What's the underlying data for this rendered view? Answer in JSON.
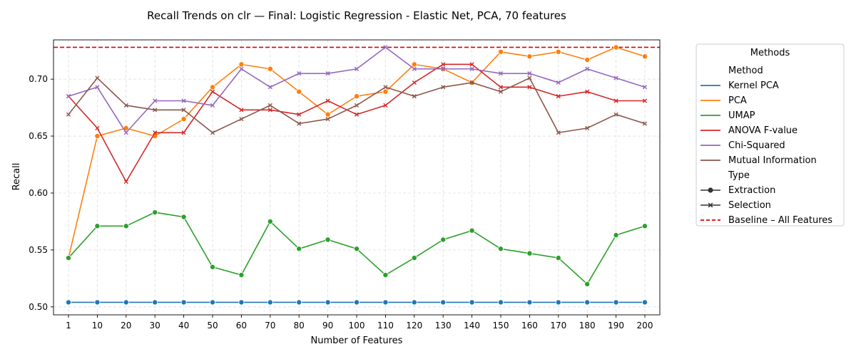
{
  "chart_data": {
    "type": "line",
    "title": "Recall Trends on clr — Final: Logistic Regression - Elastic Net, PCA, 70 features",
    "xlabel": "Number of Features",
    "ylabel": "Recall",
    "categories": [
      "1",
      "10",
      "20",
      "30",
      "40",
      "50",
      "60",
      "70",
      "80",
      "90",
      "100",
      "110",
      "120",
      "130",
      "140",
      "150",
      "160",
      "170",
      "180",
      "190",
      "200"
    ],
    "ylim": [
      0.493,
      0.7345
    ],
    "yticks": [
      "0.50",
      "0.55",
      "0.60",
      "0.65",
      "0.70"
    ],
    "ytick_values": [
      0.5,
      0.55,
      0.6,
      0.65,
      0.7
    ],
    "grid": true,
    "legend_placement": "outside-right",
    "legend": {
      "title": "Methods",
      "method_header": "Method",
      "type_header": "Type",
      "extraction_label": "Extraction",
      "selection_label": "Selection",
      "baseline_label": "Baseline – All Features"
    },
    "baseline": {
      "value": 0.728,
      "color": "#e00000"
    },
    "series": [
      {
        "name": "Kernel PCA",
        "type": "extraction",
        "color": "#1f77b4",
        "values": [
          0.504,
          0.504,
          0.504,
          0.504,
          0.504,
          0.504,
          0.504,
          0.504,
          0.504,
          0.504,
          0.504,
          0.504,
          0.504,
          0.504,
          0.504,
          0.504,
          0.504,
          0.504,
          0.504,
          0.504,
          0.504
        ]
      },
      {
        "name": "PCA",
        "type": "extraction",
        "color": "#ff7f0e",
        "values": [
          0.543,
          0.65,
          0.657,
          0.65,
          0.665,
          0.693,
          0.713,
          0.709,
          0.689,
          0.669,
          0.685,
          0.689,
          0.713,
          0.709,
          0.697,
          0.724,
          0.72,
          0.724,
          0.717,
          0.728,
          0.72
        ]
      },
      {
        "name": "UMAP",
        "type": "extraction",
        "color": "#2ca02c",
        "values": [
          0.543,
          0.571,
          0.571,
          0.583,
          0.579,
          0.535,
          0.528,
          0.575,
          0.551,
          0.559,
          0.551,
          0.528,
          0.543,
          0.559,
          0.567,
          0.551,
          0.547,
          0.543,
          0.52,
          0.563,
          0.571
        ]
      },
      {
        "name": "ANOVA F-value",
        "type": "selection",
        "color": "#d62728",
        "values": [
          0.685,
          0.657,
          0.61,
          0.653,
          0.653,
          0.689,
          0.673,
          0.673,
          0.669,
          0.681,
          0.669,
          0.677,
          0.697,
          0.713,
          0.713,
          0.693,
          0.693,
          0.685,
          0.689,
          0.681,
          0.681
        ]
      },
      {
        "name": "Chi-Squared",
        "type": "selection",
        "color": "#9467bd",
        "values": [
          0.685,
          0.693,
          0.653,
          0.681,
          0.681,
          0.677,
          0.709,
          0.693,
          0.705,
          0.705,
          0.709,
          0.728,
          0.709,
          0.709,
          0.709,
          0.705,
          0.705,
          0.697,
          0.709,
          0.701,
          0.693
        ]
      },
      {
        "name": "Mutual Information",
        "type": "selection",
        "color": "#8c564b",
        "values": [
          0.669,
          0.701,
          0.677,
          0.673,
          0.673,
          0.653,
          0.665,
          0.677,
          0.661,
          0.665,
          0.677,
          0.693,
          0.685,
          0.693,
          0.697,
          0.689,
          0.701,
          0.653,
          0.657,
          0.669,
          0.661
        ]
      }
    ]
  }
}
